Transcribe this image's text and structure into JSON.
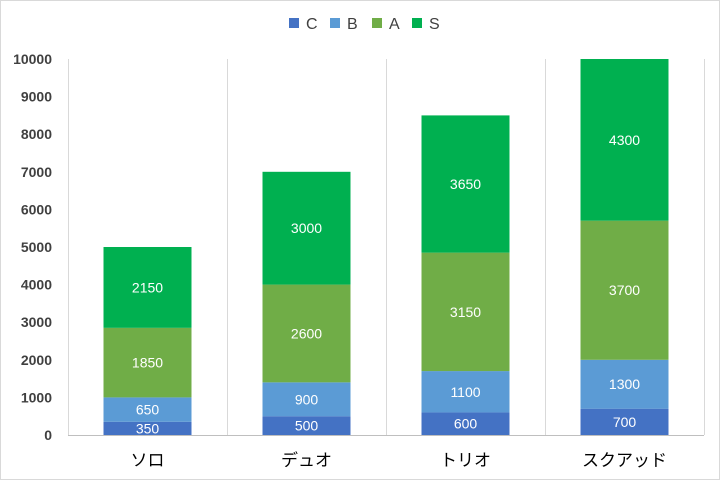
{
  "chart_data": {
    "type": "bar",
    "stacked": true,
    "categories": [
      "ソロ",
      "デュオ",
      "トリオ",
      "スクアッド"
    ],
    "series": [
      {
        "name": "C",
        "color": "#4472C4",
        "values": [
          350,
          500,
          600,
          700
        ]
      },
      {
        "name": "B",
        "color": "#5B9BD5",
        "values": [
          650,
          900,
          1100,
          1300
        ]
      },
      {
        "name": "A",
        "color": "#70AD47",
        "values": [
          1850,
          2600,
          3150,
          3700
        ]
      },
      {
        "name": "S",
        "color": "#00B050",
        "values": [
          2150,
          3000,
          3650,
          4300
        ]
      }
    ],
    "yticks": [
      "0",
      "1000",
      "2000",
      "3000",
      "4000",
      "5000",
      "6000",
      "7000",
      "8000",
      "9000",
      "10000"
    ],
    "ylim": [
      0,
      10000
    ],
    "legend_position": "top",
    "grid": "vertical-category-separators"
  }
}
